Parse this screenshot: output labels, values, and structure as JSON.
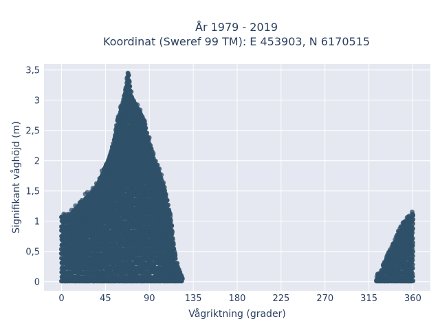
{
  "chart_data": {
    "type": "scatter",
    "title_line1": "År 1979 - 2019",
    "title_line2": "Koordinat (Sweref 99 TM): E 453903, N 6170515",
    "xlabel": "Vågriktning (grader)",
    "ylabel": "Signifikant våghöjd (m)",
    "xlim": [
      -18,
      378
    ],
    "ylim": [
      -0.15,
      3.6
    ],
    "x_ticks": [
      0,
      45,
      90,
      135,
      180,
      225,
      270,
      315,
      360
    ],
    "x_tick_labels": [
      "0",
      "45",
      "90",
      "135",
      "180",
      "225",
      "270",
      "315",
      "360"
    ],
    "y_ticks": [
      0,
      0.5,
      1,
      1.5,
      2,
      2.5,
      3,
      3.5
    ],
    "y_tick_labels": [
      "0",
      "0,5",
      "1",
      "1,5",
      "2",
      "2,5",
      "3",
      "3,5"
    ],
    "grid": true,
    "colors": {
      "marker": "#2f5068",
      "plot_bg": "#e5e8f0",
      "grid": "#ffffff"
    },
    "envelope_points": [
      {
        "x": 0,
        "y": 1.07
      },
      {
        "x": 5,
        "y": 1.05
      },
      {
        "x": 10,
        "y": 1.1
      },
      {
        "x": 15,
        "y": 1.2
      },
      {
        "x": 20,
        "y": 1.3
      },
      {
        "x": 25,
        "y": 1.38
      },
      {
        "x": 30,
        "y": 1.45
      },
      {
        "x": 35,
        "y": 1.55
      },
      {
        "x": 40,
        "y": 1.7
      },
      {
        "x": 45,
        "y": 1.9
      },
      {
        "x": 50,
        "y": 2.1
      },
      {
        "x": 55,
        "y": 2.4
      },
      {
        "x": 58,
        "y": 2.7
      },
      {
        "x": 62,
        "y": 2.9
      },
      {
        "x": 65,
        "y": 3.1
      },
      {
        "x": 68,
        "y": 3.45
      },
      {
        "x": 72,
        "y": 3.05
      },
      {
        "x": 75,
        "y": 2.95
      },
      {
        "x": 80,
        "y": 2.8
      },
      {
        "x": 85,
        "y": 2.65
      },
      {
        "x": 88,
        "y": 2.4
      },
      {
        "x": 92,
        "y": 2.2
      },
      {
        "x": 96,
        "y": 1.95
      },
      {
        "x": 100,
        "y": 1.8
      },
      {
        "x": 104,
        "y": 1.6
      },
      {
        "x": 108,
        "y": 1.35
      },
      {
        "x": 112,
        "y": 1.0
      },
      {
        "x": 115,
        "y": 0.55
      },
      {
        "x": 118,
        "y": 0.3
      },
      {
        "x": 121,
        "y": 0.15
      },
      {
        "x": 124,
        "y": 0.05
      },
      {
        "x": 323,
        "y": 0.03
      },
      {
        "x": 327,
        "y": 0.1
      },
      {
        "x": 331,
        "y": 0.25
      },
      {
        "x": 335,
        "y": 0.4
      },
      {
        "x": 340,
        "y": 0.55
      },
      {
        "x": 345,
        "y": 0.75
      },
      {
        "x": 350,
        "y": 0.9
      },
      {
        "x": 355,
        "y": 1.0
      },
      {
        "x": 358,
        "y": 1.05
      },
      {
        "x": 360,
        "y": 1.1
      }
    ]
  }
}
